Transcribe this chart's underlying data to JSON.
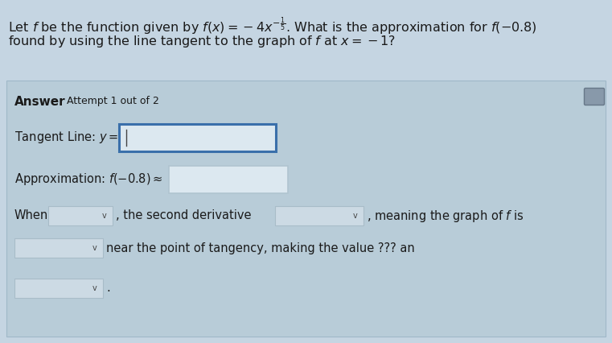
{
  "title_bg": "#c5d5e2",
  "panel_bg": "#b8ccd8",
  "panel_border": "#a0b8c8",
  "input_box_color": "#dce8f0",
  "input_box_border_blue": "#3a6faa",
  "input_box_border_light": "#b0c4d0",
  "dropdown_bg": "#ccdae4",
  "dropdown_border": "#a8bcc8",
  "text_color": "#1a1a1a",
  "corner_box_bg": "#8899aa",
  "corner_box_border": "#667788",
  "title_line1": "Let $f$ be the function given by $f(x)=-4x^{-\\frac{1}{5}}$. What is the approximation for $f(-0.8)$",
  "title_line2": "found by using the line tangent to the graph of $f$ at $x=-1$?",
  "answer_bold": "Answer",
  "attempt_text": "  Attempt 1 out of 2",
  "tangent_text": "Tangent Line: $y=$",
  "approx_text": "Approximation: $f(-0.8)\\approx$",
  "when_text": "When",
  "second_deriv_text": ", the second derivative",
  "meaning_text": ", meaning the graph of $f$ is",
  "near_text": "near the point of tangency, making the value ??? an",
  "font_size_title": 11.5,
  "font_size_body": 10.5,
  "font_size_answer": 11.0,
  "font_size_attempt": 9.0,
  "font_size_dropdown_arrow": 7.0
}
